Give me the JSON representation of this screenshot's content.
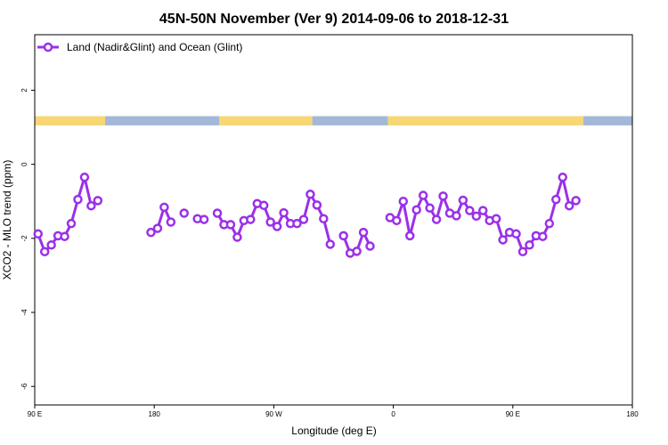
{
  "chart_data": {
    "type": "line",
    "title": "45N-50N November (Ver 9)   2014-09-06 to 2018-12-31",
    "xlabel": "Longitude (deg E)",
    "ylabel": "XCO2 - MLO trend (ppm)",
    "x_axis": {
      "range_deg": [
        90,
        450
      ],
      "ticks": [
        {
          "value": 90,
          "label": "90 E"
        },
        {
          "value": 180,
          "label": "180"
        },
        {
          "value": 270,
          "label": "90 W"
        },
        {
          "value": 360,
          "label": "0"
        },
        {
          "value": 450,
          "label": "90 E"
        },
        {
          "value": 540,
          "label": "180"
        }
      ]
    },
    "y_axis": {
      "range": [
        -6.5,
        3.5
      ],
      "ticks": [
        {
          "value": 2,
          "label": "2"
        },
        {
          "value": 0,
          "label": "0"
        },
        {
          "value": -2,
          "label": "-2"
        },
        {
          "value": -4,
          "label": "-4"
        },
        {
          "value": -6,
          "label": "-6"
        }
      ]
    },
    "grid": false,
    "legend_position": "top-left",
    "colors": {
      "series": "#9b30e8",
      "land": "#f7d773",
      "ocean": "#a3b8d8"
    },
    "surface_strip": {
      "y_range": [
        1.05,
        1.3
      ],
      "segments": [
        {
          "type": "land",
          "x": [
            90,
            143
          ]
        },
        {
          "type": "ocean",
          "x": [
            143,
            229
          ]
        },
        {
          "type": "land",
          "x": [
            229,
            299
          ]
        },
        {
          "type": "ocean",
          "x": [
            299,
            356
          ]
        },
        {
          "type": "land",
          "x": [
            356,
            503
          ]
        },
        {
          "type": "ocean",
          "x": [
            503,
            540
          ]
        }
      ]
    },
    "series": [
      {
        "name": "Land (Nadir&Glint) and Ocean (Glint)",
        "segments": [
          [
            [
              92.5,
              -1.88
            ],
            [
              97.5,
              -2.36
            ],
            [
              102.5,
              -2.18
            ],
            [
              107.5,
              -1.93
            ],
            [
              112.5,
              -1.95
            ],
            [
              117.5,
              -1.6
            ],
            [
              122.5,
              -0.95
            ],
            [
              127.5,
              -0.35
            ],
            [
              132.5,
              -1.12
            ],
            [
              137.5,
              -0.98
            ]
          ],
          [
            [
              177.5,
              -1.84
            ],
            [
              182.5,
              -1.73
            ],
            [
              187.5,
              -1.16
            ],
            [
              192.5,
              -1.56
            ]
          ],
          [
            [
              202.5,
              -1.32
            ]
          ],
          [
            [
              212.5,
              -1.47
            ],
            [
              217.5,
              -1.49
            ]
          ],
          [
            [
              227.5,
              -1.32
            ],
            [
              232.5,
              -1.63
            ],
            [
              237.5,
              -1.63
            ],
            [
              242.5,
              -1.97
            ],
            [
              247.5,
              -1.52
            ],
            [
              252.5,
              -1.49
            ],
            [
              257.5,
              -1.06
            ],
            [
              262.5,
              -1.11
            ],
            [
              267.5,
              -1.56
            ],
            [
              272.5,
              -1.68
            ],
            [
              277.5,
              -1.31
            ],
            [
              282.5,
              -1.6
            ],
            [
              287.5,
              -1.6
            ],
            [
              292.5,
              -1.49
            ],
            [
              297.5,
              -0.81
            ],
            [
              302.5,
              -1.1
            ],
            [
              307.5,
              -1.47
            ],
            [
              312.5,
              -2.16
            ]
          ],
          [
            [
              322.5,
              -1.93
            ],
            [
              327.5,
              -2.4
            ],
            [
              332.5,
              -2.35
            ],
            [
              337.5,
              -1.84
            ],
            [
              342.5,
              -2.21
            ]
          ],
          [
            [
              357.5,
              -1.44
            ],
            [
              362.5,
              -1.52
            ],
            [
              367.5,
              -1.0
            ],
            [
              372.5,
              -1.93
            ],
            [
              377.5,
              -1.23
            ],
            [
              382.5,
              -0.84
            ],
            [
              387.5,
              -1.18
            ],
            [
              392.5,
              -1.49
            ],
            [
              397.5,
              -0.86
            ],
            [
              402.5,
              -1.32
            ],
            [
              407.5,
              -1.39
            ],
            [
              412.5,
              -0.97
            ],
            [
              417.5,
              -1.25
            ],
            [
              422.5,
              -1.4
            ],
            [
              427.5,
              -1.25
            ],
            [
              432.5,
              -1.52
            ],
            [
              437.5,
              -1.47
            ],
            [
              442.5,
              -2.04
            ],
            [
              447.5,
              -1.84
            ],
            [
              452.5,
              -1.88
            ],
            [
              457.5,
              -2.36
            ],
            [
              462.5,
              -2.18
            ],
            [
              467.5,
              -1.93
            ],
            [
              472.5,
              -1.95
            ],
            [
              477.5,
              -1.6
            ],
            [
              482.5,
              -0.95
            ],
            [
              487.5,
              -0.35
            ],
            [
              492.5,
              -1.12
            ],
            [
              497.5,
              -0.98
            ]
          ]
        ]
      }
    ]
  }
}
